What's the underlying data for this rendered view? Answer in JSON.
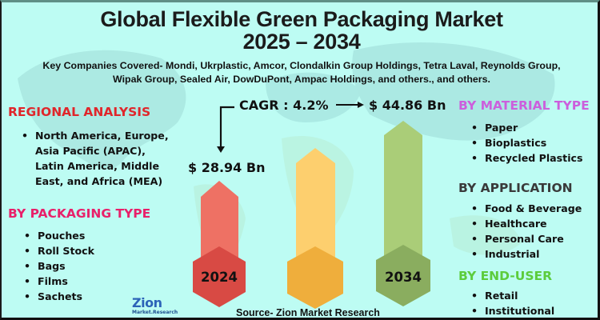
{
  "header": {
    "title_line1": "Global Flexible Green Packaging Market",
    "title_line2": "2025 – 2034",
    "companies_line1": "Key Companies Covered- Mondi, Ukrplastic, Amcor, Clondalkin Group Holdings, Tetra Laval, Reynolds Group,",
    "companies_line2": "Wipak Group, Sealed Air, DowDuPont, Ampac Holdings, and others., and others."
  },
  "regional": {
    "heading": "REGIONAL ANALYSIS",
    "color": "#e0262b",
    "lines": [
      "North America, Europe,",
      "Asia Pacific (APAC),",
      "Latin America, Middle",
      "East, and Africa (MEA)"
    ]
  },
  "packaging": {
    "heading": "BY PACKAGING TYPE",
    "color": "#e8206a",
    "items": [
      "Pouches",
      "Roll Stock",
      "Bags",
      "Films",
      "Sachets"
    ]
  },
  "material": {
    "heading": "BY MATERIAL TYPE",
    "color": "#cc5fdc",
    "items": [
      "Paper",
      "Bioplastics",
      "Recycled Plastics"
    ]
  },
  "application": {
    "heading": "BY APPLICATION",
    "color": "#3a3a3a",
    "items": [
      "Food & Beverage",
      "Healthcare",
      "Personal Care",
      "Industrial"
    ]
  },
  "end_user": {
    "heading": "BY END-USER",
    "color": "#5ccc3c",
    "items": [
      "Retail",
      "Institutional"
    ]
  },
  "market": {
    "cagr_label": "CAGR : 4.2%",
    "value_2024": "$ 28.94 Bn",
    "value_2034": "$ 44.86 Bn",
    "year_start": "2024",
    "year_end": "2034",
    "colors": {
      "red_bar": "#ee7164",
      "red_hex": "#d84a44",
      "orange_bar": "#fdcf6e",
      "orange_hex": "#efae3c",
      "green_bar": "#aacd78",
      "green_hex": "#8aad5f"
    }
  },
  "footer": {
    "source": "Source- Zion Market Research",
    "logo_text": "Zion",
    "logo_sub": "Market.Research"
  }
}
